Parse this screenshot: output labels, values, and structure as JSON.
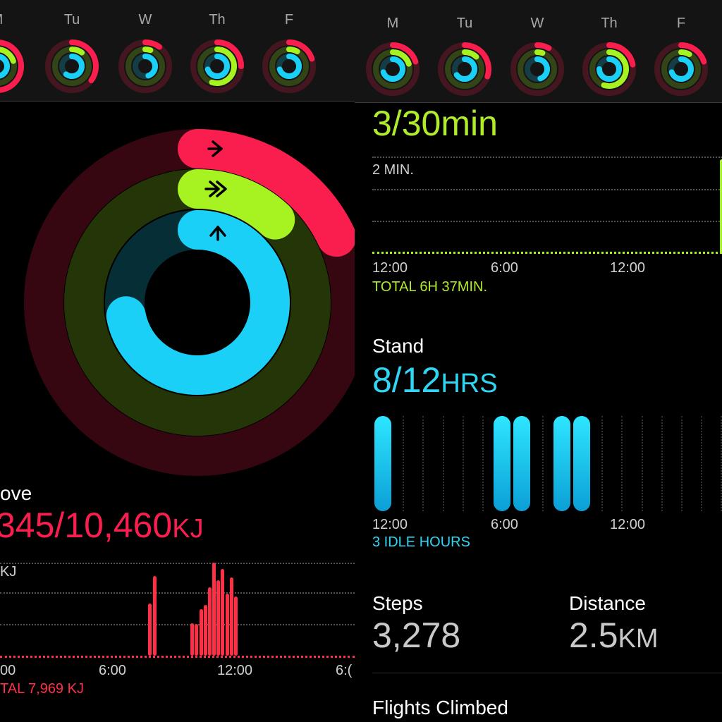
{
  "colors": {
    "move": "#fa1e4e",
    "exercise": "#a6f321",
    "stand": "#1ad0f6",
    "move_bar": "#ff3045",
    "exercise_text": "#b1ec2b",
    "stand_text": "#2fd6f4"
  },
  "left": {
    "days": [
      {
        "label": "M",
        "icon": "activity-rings-icon",
        "move": 0.6,
        "exercise": 0.2,
        "stand": 0.7
      },
      {
        "label": "Tu",
        "icon": "activity-rings-icon",
        "move": 0.35,
        "exercise": 0.1,
        "stand": 0.6
      },
      {
        "label": "W",
        "icon": "activity-rings-icon",
        "move": 0.1,
        "exercise": 0.05,
        "stand": 0.45
      },
      {
        "label": "Th",
        "icon": "activity-rings-icon",
        "move": 0.25,
        "exercise": 0.55,
        "stand": 0.7
      },
      {
        "label": "F",
        "icon": "activity-rings-icon",
        "move": 0.2,
        "exercise": 0.08,
        "stand": 0.7
      }
    ],
    "move_title": "ove",
    "move_value": "345/10,460",
    "move_unit": "KJ",
    "chart_axis_top": "KJ",
    "chart_x_ticks": [
      "00",
      "6:00",
      "12:00",
      "6:("
    ],
    "chart_total": "TAL 7,969 KJ",
    "big_rings": {
      "move": 0.18,
      "exercise": 0.12,
      "stand": 0.72
    }
  },
  "right": {
    "days": [
      {
        "label": "M",
        "icon": "activity-rings-icon",
        "move": 0.2,
        "exercise": 0.2,
        "stand": 0.7
      },
      {
        "label": "Tu",
        "icon": "activity-rings-icon",
        "move": 0.3,
        "exercise": 0.12,
        "stand": 0.65
      },
      {
        "label": "W",
        "icon": "activity-rings-icon",
        "move": 0.08,
        "exercise": 0.05,
        "stand": 0.45
      },
      {
        "label": "Th",
        "icon": "activity-rings-icon",
        "move": 0.22,
        "exercise": 0.55,
        "stand": 0.75
      },
      {
        "label": "F",
        "icon": "activity-rings-icon",
        "move": 0.2,
        "exercise": 0.08,
        "stand": 0.7
      }
    ],
    "exercise_value": "3/30",
    "exercise_unit": "min",
    "exercise_axis_top": "2 MIN.",
    "exercise_x_ticks": [
      "12:00",
      "6:00",
      "12:00"
    ],
    "exercise_total": "TOTAL 6H 37MIN.",
    "stand_title": "Stand",
    "stand_value": "8/12",
    "stand_unit": "HRS",
    "stand_x_ticks": [
      "12:00",
      "6:00",
      "12:00"
    ],
    "stand_idle": "3 IDLE HOURS",
    "steps_label": "Steps",
    "steps_value": "3,278",
    "distance_label": "Distance",
    "distance_value": "2.5",
    "distance_unit": "KM",
    "flights_label": "Flights Climbed"
  },
  "chart_data": [
    {
      "type": "bar",
      "series": [
        {
          "name": "",
          "values": [
            0,
            0,
            0,
            0,
            0,
            0,
            0,
            0,
            0,
            0,
            0,
            0,
            0,
            0,
            0,
            0,
            0,
            0,
            0,
            0,
            0,
            0,
            0,
            0,
            0,
            0,
            0,
            0,
            0,
            0,
            0,
            0,
            0,
            0,
            0,
            0,
            0,
            0,
            0,
            0,
            0,
            0,
            0,
            0,
            0,
            0,
            0,
            0,
            0,
            0,
            0,
            0,
            0,
            0,
            0,
            0,
            0,
            0,
            0,
            0,
            0,
            0,
            0,
            0,
            0,
            0,
            0,
            0,
            0,
            0,
            0,
            0,
            0,
            0,
            0,
            0,
            0,
            0,
            0,
            0,
            0,
            0,
            0,
            0,
            0,
            0,
            0,
            0,
            0,
            0,
            0,
            0,
            0,
            0,
            0,
            0,
            0,
            0,
            0,
            0,
            0,
            0,
            0,
            0,
            0,
            0,
            0,
            0,
            0,
            0,
            0,
            0,
            0,
            0,
            0,
            0,
            0,
            0,
            0,
            0,
            0,
            0,
            0,
            0,
            0,
            0,
            0,
            0,
            0,
            0,
            0,
            0,
            0,
            0,
            0,
            0,
            0,
            0,
            0,
            0
          ]
        }
      ],
      "bars": [
        {
          "x": 0.51,
          "v": 0.55
        },
        {
          "x": 0.525,
          "v": 0.84
        },
        {
          "x": 0.655,
          "v": 0.34
        },
        {
          "x": 0.67,
          "v": 0.33
        },
        {
          "x": 0.685,
          "v": 0.49
        },
        {
          "x": 0.7,
          "v": 0.53
        },
        {
          "x": 0.715,
          "v": 0.72
        },
        {
          "x": 0.73,
          "v": 0.98
        },
        {
          "x": 0.745,
          "v": 0.79
        },
        {
          "x": 0.76,
          "v": 0.91
        },
        {
          "x": 0.775,
          "v": 0.65
        },
        {
          "x": 0.79,
          "v": 0.82
        },
        {
          "x": 0.805,
          "v": 0.62
        }
      ],
      "xlabel": "",
      "ylabel": "",
      "x_ticks": [
        "00",
        "6:00",
        "12:00",
        "6:("
      ]
    },
    {
      "type": "bar",
      "bars": [
        {
          "x": 0.985,
          "v": 1.0
        }
      ],
      "x_ticks": [
        "12:00",
        "6:00",
        "12:00"
      ]
    },
    {
      "type": "bar",
      "hours_stood": [
        0,
        6,
        7,
        9,
        10
      ],
      "x_ticks": [
        "12:00",
        "6:00",
        "12:00"
      ]
    }
  ]
}
